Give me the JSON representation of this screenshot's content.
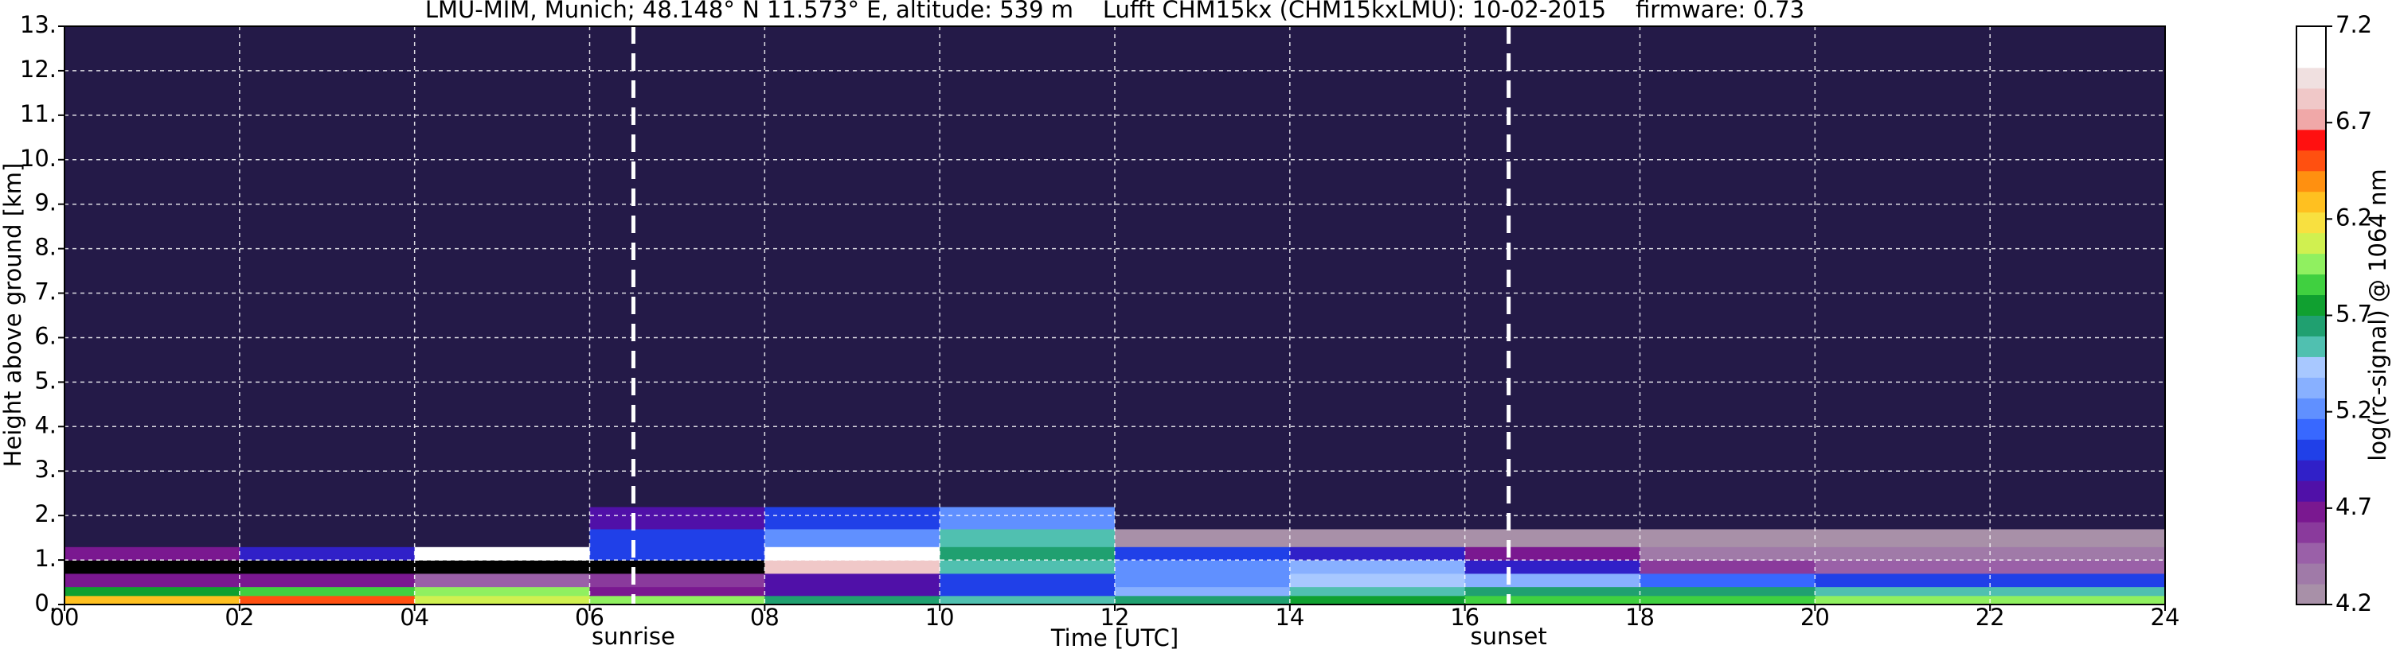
{
  "chart_data": {
    "type": "heatmap",
    "title": "LMU-MIM, Munich; 48.148° N 11.573° E, altitude: 539 m    Lufft CHM15kx (CHM15kxLMU): 10-02-2015    firmware: 0.73",
    "xlabel": "Time [UTC]",
    "ylabel": "Height above ground [km]",
    "colorbar_label": "log(rc-signal) @ 1064 nm",
    "xlim": [
      0,
      24
    ],
    "ylim": [
      0,
      13
    ],
    "xticks": [
      {
        "value": 0,
        "label": "00"
      },
      {
        "value": 2,
        "label": "02"
      },
      {
        "value": 4,
        "label": "04"
      },
      {
        "value": 6,
        "label": "06"
      },
      {
        "value": 8,
        "label": "08"
      },
      {
        "value": 10,
        "label": "10"
      },
      {
        "value": 12,
        "label": "12"
      },
      {
        "value": 14,
        "label": "14"
      },
      {
        "value": 16,
        "label": "16"
      },
      {
        "value": 18,
        "label": "18"
      },
      {
        "value": 20,
        "label": "20"
      },
      {
        "value": 22,
        "label": "22"
      },
      {
        "value": 24,
        "label": "24"
      }
    ],
    "yticks": [
      {
        "value": 0,
        "label": "0."
      },
      {
        "value": 1,
        "label": "1."
      },
      {
        "value": 2,
        "label": "2."
      },
      {
        "value": 3,
        "label": "3."
      },
      {
        "value": 4,
        "label": "4."
      },
      {
        "value": 5,
        "label": "5."
      },
      {
        "value": 6,
        "label": "6."
      },
      {
        "value": 7,
        "label": "7."
      },
      {
        "value": 8,
        "label": "8."
      },
      {
        "value": 9,
        "label": "9."
      },
      {
        "value": 10,
        "label": "10."
      },
      {
        "value": 11,
        "label": "11."
      },
      {
        "value": 12,
        "label": "12."
      },
      {
        "value": 13,
        "label": "13."
      }
    ],
    "grid": true,
    "x_edges": [
      0,
      2,
      4,
      6,
      8,
      10,
      12,
      14,
      16,
      18,
      20,
      22,
      24
    ],
    "y_edges": [
      0,
      0.2,
      0.4,
      0.7,
      1.0,
      1.3,
      1.7,
      2.2,
      4,
      8,
      13
    ],
    "z": [
      [
        6.3,
        6.5,
        6.1,
        6.0,
        5.6,
        5.5,
        5.6,
        5.8,
        5.9,
        5.9,
        6.0,
        6.0
      ],
      [
        5.8,
        5.9,
        6.0,
        4.7,
        4.8,
        5.0,
        5.3,
        5.5,
        5.6,
        5.6,
        5.5,
        5.5
      ],
      [
        4.7,
        4.7,
        4.5,
        4.6,
        4.8,
        5.0,
        5.2,
        5.4,
        5.3,
        5.1,
        5.0,
        5.0
      ],
      [
        7.4,
        7.4,
        7.4,
        7.4,
        6.8,
        5.5,
        5.2,
        5.3,
        4.9,
        4.6,
        4.5,
        4.5
      ],
      [
        4.7,
        4.9,
        7.0,
        5.0,
        7.0,
        5.6,
        5.0,
        4.9,
        4.7,
        4.4,
        4.4,
        4.4
      ],
      [
        4.1,
        4.1,
        4.1,
        5.0,
        5.2,
        5.5,
        4.3,
        4.2,
        4.2,
        4.3,
        4.3,
        4.3
      ],
      [
        4.0,
        4.0,
        4.0,
        4.8,
        5.0,
        5.2,
        4.1,
        4.0,
        4.0,
        4.0,
        4.0,
        4.0
      ],
      [
        3.9,
        3.9,
        3.9,
        4.0,
        4.0,
        4.0,
        3.9,
        3.9,
        3.9,
        3.9,
        3.9,
        3.9
      ],
      [
        3.9,
        3.9,
        3.9,
        3.9,
        4.0,
        4.0,
        3.9,
        3.9,
        3.9,
        3.9,
        3.9,
        3.9
      ],
      [
        3.9,
        3.9,
        3.9,
        3.9,
        3.9,
        3.9,
        3.9,
        3.9,
        3.9,
        3.9,
        3.9,
        3.9
      ]
    ],
    "clim": [
      4.2,
      7.2
    ],
    "colorbar_ticks": [
      4.2,
      4.7,
      5.2,
      5.7,
      6.2,
      6.7,
      7.2
    ],
    "colors": [
      "#a890a8",
      "#a07aa8",
      "#9a60a8",
      "#8a3a9c",
      "#7a1890",
      "#5010a8",
      "#3020c8",
      "#2040e8",
      "#3868ff",
      "#6090ff",
      "#88b0ff",
      "#a8c8ff",
      "#50c0b0",
      "#20a070",
      "#10a030",
      "#40d040",
      "#90f060",
      "#d0f050",
      "#f8e040",
      "#ffc020",
      "#ff9010",
      "#ff5010",
      "#ff1010",
      "#f0a8a8",
      "#f0c8c8",
      "#f0e0e0",
      "#ffffff",
      "#ffffff"
    ],
    "under_color": "#241a48",
    "over_color": "#000000",
    "annotations": [
      {
        "x": 6.5,
        "label": "sunrise"
      },
      {
        "x": 16.5,
        "label": "sunset"
      }
    ]
  }
}
